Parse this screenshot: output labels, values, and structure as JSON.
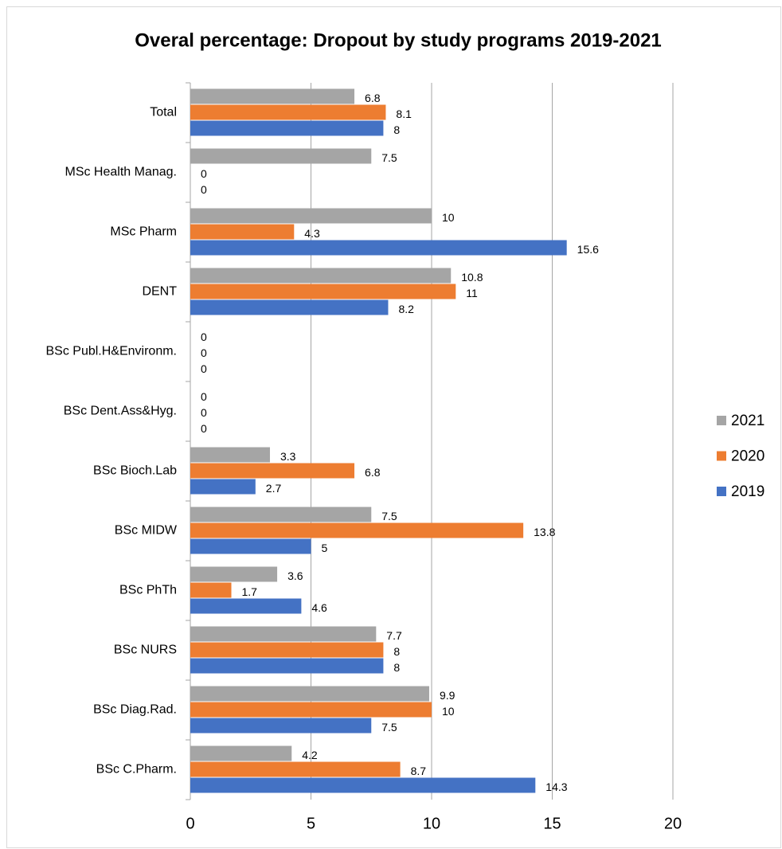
{
  "chart_data": {
    "type": "hbar",
    "title": "Overal percentage: Dropout by study programs 2019-2021",
    "categories": [
      "Total",
      "MSc Health Manag.",
      "MSc Pharm",
      "DENT",
      "BSc Publ.H&Environm.",
      "BSc Dent.Ass&Hyg.",
      "BSc Bioch.Lab",
      "BSc MIDW",
      "BSc PhTh",
      "BSc NURS",
      "BSc Diag.Rad.",
      "BSc C.Pharm."
    ],
    "series": [
      {
        "name": "2021",
        "color": "#a5a5a5",
        "values": [
          6.8,
          7.5,
          10,
          10.8,
          0,
          0,
          3.3,
          7.5,
          3.6,
          7.7,
          9.9,
          4.2
        ]
      },
      {
        "name": "2020",
        "color": "#ed7d31",
        "values": [
          8.1,
          0,
          4.3,
          11,
          0,
          0,
          6.8,
          13.8,
          1.7,
          8,
          10,
          8.7
        ]
      },
      {
        "name": "2019",
        "color": "#4472c4",
        "values": [
          8,
          0,
          15.6,
          8.2,
          0,
          0,
          2.7,
          5,
          4.6,
          8,
          7.5,
          14.3
        ]
      }
    ],
    "xlim": [
      0,
      20
    ],
    "xticks": [
      0,
      5,
      10,
      15,
      20
    ],
    "grid": true,
    "legend": "right"
  }
}
